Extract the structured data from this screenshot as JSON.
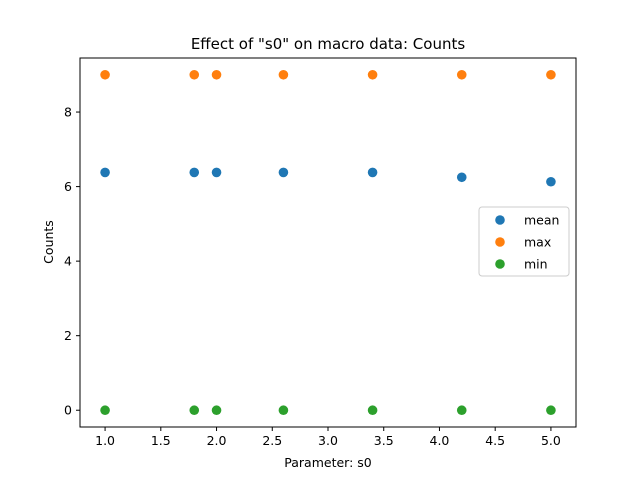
{
  "chart_data": {
    "type": "scatter",
    "title": "Effect of \"s0\" on macro data: Counts",
    "xlabel": "Parameter: s0",
    "ylabel": "Counts",
    "xlim": [
      0.775,
      5.225
    ],
    "ylim": [
      -0.45,
      9.45
    ],
    "xticks": [
      1.0,
      1.5,
      2.0,
      2.5,
      3.0,
      3.5,
      4.0,
      4.5,
      5.0
    ],
    "xtick_labels": [
      "1.0",
      "1.5",
      "2.0",
      "2.5",
      "3.0",
      "3.5",
      "4.0",
      "4.5",
      "5.0"
    ],
    "yticks": [
      0,
      2,
      4,
      6,
      8
    ],
    "ytick_labels": [
      "0",
      "2",
      "4",
      "6",
      "8"
    ],
    "grid": false,
    "legend_position": "center-right",
    "x": [
      1.0,
      1.8,
      2.0,
      2.6,
      3.4,
      4.2,
      5.0
    ],
    "series": [
      {
        "name": "mean",
        "color": "#1f77b4",
        "values": [
          6.38,
          6.38,
          6.38,
          6.38,
          6.38,
          6.25,
          6.13
        ]
      },
      {
        "name": "max",
        "color": "#ff7f0e",
        "values": [
          9,
          9,
          9,
          9,
          9,
          9,
          9
        ]
      },
      {
        "name": "min",
        "color": "#2ca02c",
        "values": [
          0,
          0,
          0,
          0,
          0,
          0,
          0
        ]
      }
    ]
  }
}
